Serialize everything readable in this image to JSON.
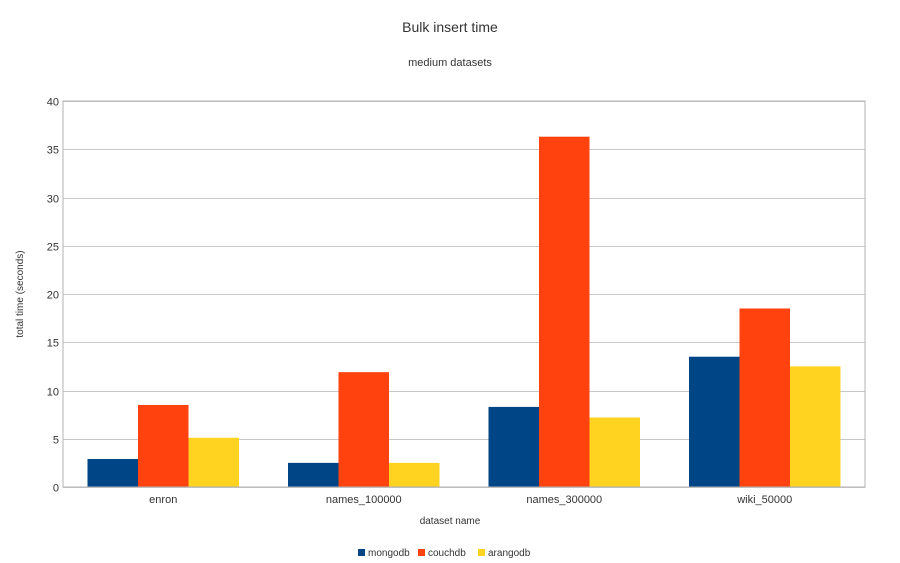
{
  "chart_data": {
    "type": "bar",
    "title": "Bulk insert time",
    "subtitle": "medium datasets",
    "xlabel": "dataset name",
    "ylabel": "total time (seconds)",
    "ylim": [
      0,
      40
    ],
    "yticks": [
      0,
      5,
      10,
      15,
      20,
      25,
      30,
      35,
      40
    ],
    "grid": true,
    "legend_position": "bottom",
    "categories": [
      "enron",
      "names_100000",
      "names_300000",
      "wiki_50000"
    ],
    "series": [
      {
        "name": "mongodb",
        "color": "#004586",
        "values": [
          2.9,
          2.5,
          8.3,
          13.5
        ]
      },
      {
        "name": "couchdb",
        "color": "#ff420e",
        "values": [
          8.5,
          11.9,
          36.3,
          18.5
        ]
      },
      {
        "name": "arangodb",
        "color": "#ffd320",
        "values": [
          5.1,
          2.5,
          7.2,
          12.5
        ]
      }
    ]
  }
}
